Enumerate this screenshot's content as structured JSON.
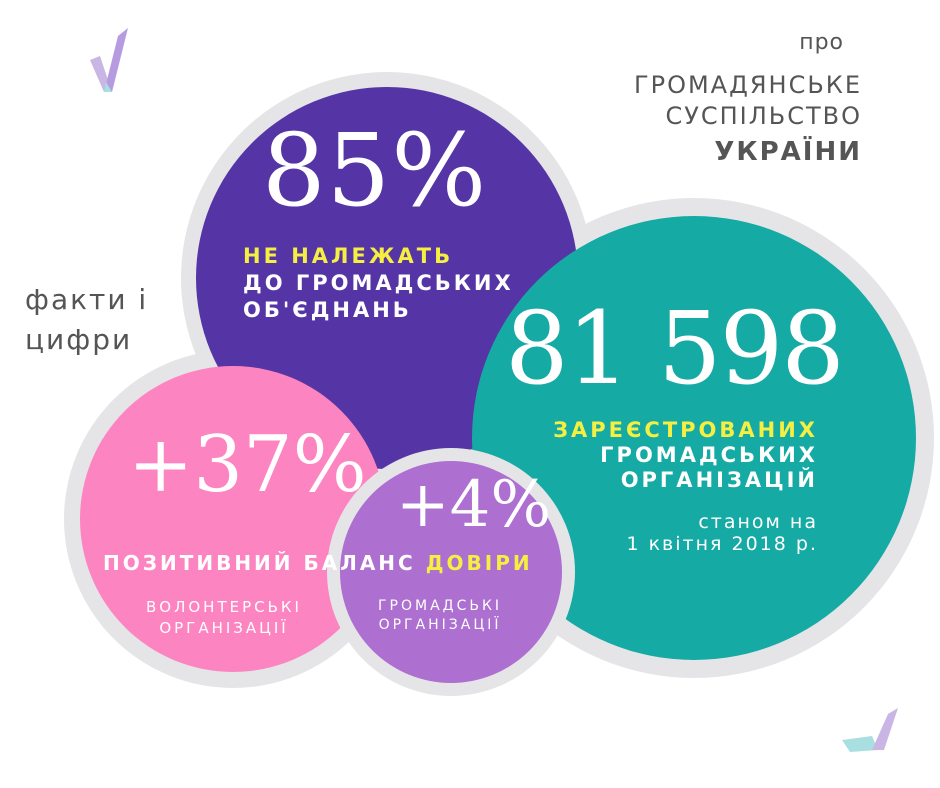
{
  "header": {
    "pro": "про",
    "title_line1": "ГРОМАДЯНСЬКЕ",
    "title_line2": "СУСПІЛЬСТВО",
    "country": "УКРАЇНИ"
  },
  "facts_label": {
    "line1": "факти і",
    "line2": "цифри"
  },
  "stat_85": {
    "value": "85%",
    "highlight": "НЕ НАЛЕЖАТЬ",
    "line2": "ДО ГРОМАДСЬКИХ",
    "line3": "ОБ'ЄДНАНЬ"
  },
  "stat_81598": {
    "value": "81 598",
    "highlight": "ЗАРЕЄСТРОВАНИХ",
    "line2": "ГРОМАДСЬКИХ",
    "line3": "ОРГАНІЗАЦІЙ",
    "date_line1": "станом на",
    "date_line2": "1 квітня 2018 р."
  },
  "trust": {
    "label_prefix": "ПОЗИТИВНИЙ БАЛАНС ",
    "label_highlight": "ДОВІРИ"
  },
  "stat_37": {
    "value": "+37%",
    "line1": "ВОЛОНТЕРСЬКІ",
    "line2": "ОРГАНІЗАЦІЇ"
  },
  "stat_4": {
    "value": "+4%",
    "line1": "ГРОМАДСЬКІ",
    "line2": "ОРГАНІЗАЦІЇ"
  },
  "colors": {
    "purple": "#5535a5",
    "teal": "#16aaa5",
    "pink": "#fc85c1",
    "lilac": "#ad6fd0",
    "ring": "#e5e5e8",
    "highlight": "#f5ef42",
    "text_gray": "#555555"
  }
}
